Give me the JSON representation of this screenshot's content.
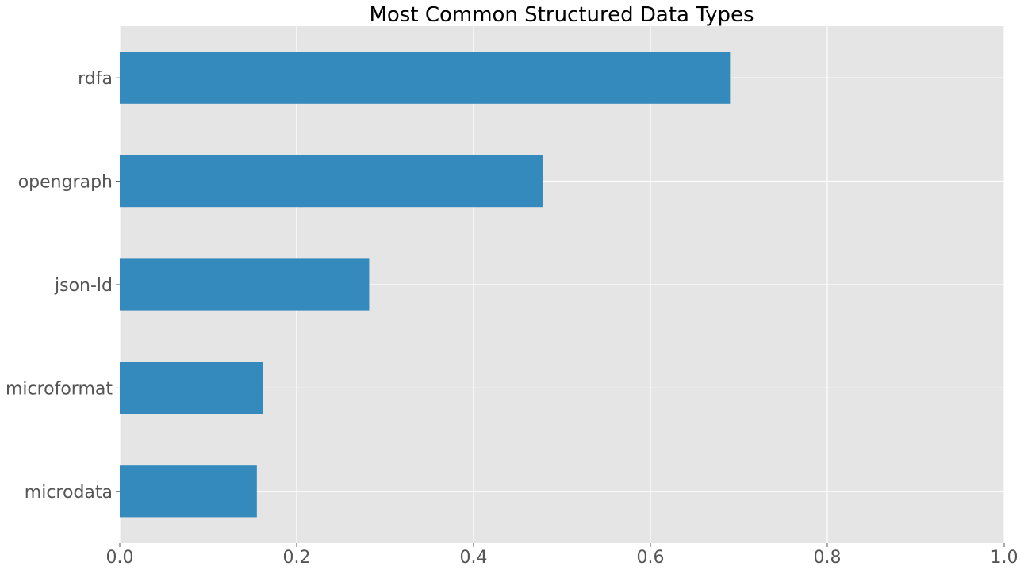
{
  "chart_data": {
    "type": "bar",
    "orientation": "horizontal",
    "title": "Most Common Structured Data Types",
    "xlabel": "",
    "ylabel": "",
    "categories": [
      "rdfa",
      "opengraph",
      "json-ld",
      "microformat",
      "microdata"
    ],
    "values": [
      0.69,
      0.478,
      0.282,
      0.162,
      0.155
    ],
    "xlim": [
      0.0,
      1.0
    ],
    "xticks": [
      "0.0",
      "0.2",
      "0.4",
      "0.6",
      "0.8",
      "1.0"
    ],
    "grid": true,
    "legend": "none",
    "colors": {
      "bar": "#348ABD",
      "plot_background": "#E5E5E5",
      "grid": "#FFFFFF",
      "tick_label": "#555555",
      "title": "#000000"
    }
  }
}
